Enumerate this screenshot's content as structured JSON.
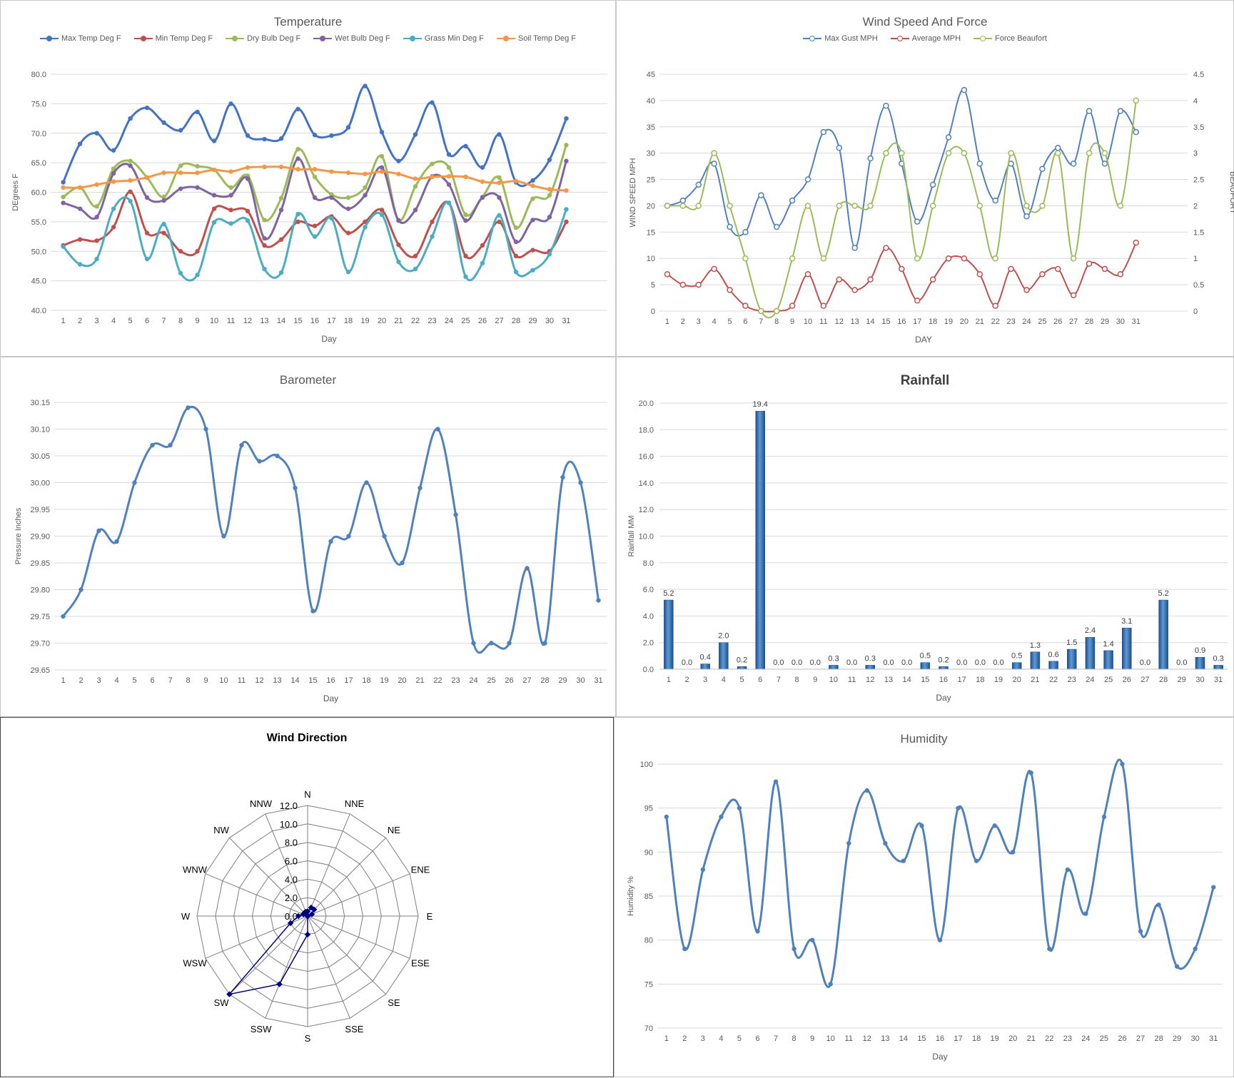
{
  "days": [
    "1",
    "2",
    "3",
    "4",
    "5",
    "6",
    "7",
    "8",
    "9",
    "10",
    "11",
    "12",
    "13",
    "14",
    "15",
    "16",
    "17",
    "18",
    "19",
    "20",
    "21",
    "22",
    "23",
    "24",
    "25",
    "26",
    "27",
    "28",
    "29",
    "30",
    "31"
  ],
  "chart_data": [
    {
      "id": "temperature",
      "type": "line",
      "title": "Temperature",
      "xlabel": "Day",
      "ylabel": "DEgrees F",
      "ylim": [
        40.0,
        80.0
      ],
      "yticks": [
        "40.0",
        "45.0",
        "50.0",
        "55.0",
        "60.0",
        "65.0",
        "70.0",
        "75.0",
        "80.0"
      ],
      "grid": true,
      "legend": "top",
      "series": [
        {
          "name": "Max Temp Deg F",
          "color": "#4472C4",
          "values": [
            61.7,
            68.2,
            70.0,
            67.1,
            72.5,
            74.3,
            71.8,
            70.5,
            73.6,
            68.7,
            75.0,
            69.6,
            69.0,
            69.1,
            74.1,
            69.7,
            69.6,
            71.0,
            78.0,
            70.2,
            65.3,
            69.8,
            75.2,
            66.4,
            67.8,
            64.2,
            69.8,
            61.7,
            62.0,
            65.5,
            72.5
          ]
        },
        {
          "name": "Min Temp Deg F",
          "color": "#C0504D",
          "values": [
            51.0,
            52.0,
            51.8,
            54.1,
            60.1,
            53.1,
            53.1,
            50.0,
            50.0,
            57.2,
            57.0,
            56.8,
            51.0,
            52.0,
            55.0,
            54.3,
            55.9,
            53.1,
            55.0,
            57.0,
            51.1,
            49.2,
            55.0,
            58.2,
            49.2,
            51.0,
            55.0,
            49.2,
            50.2,
            50.0,
            55.0
          ]
        },
        {
          "name": "Dry Bulb Deg F",
          "color": "#9BBB59",
          "values": [
            59.2,
            60.8,
            57.6,
            64.0,
            65.3,
            62.5,
            59.2,
            64.5,
            64.4,
            63.8,
            60.8,
            62.8,
            55.3,
            59.0,
            67.3,
            62.6,
            59.6,
            59.1,
            60.8,
            66.1,
            55.3,
            61.0,
            64.8,
            64.2,
            56.2,
            59.2,
            62.5,
            54.0,
            58.9,
            59.5,
            68.0
          ]
        },
        {
          "name": "Wet Bulb Deg F",
          "color": "#8064A2",
          "values": [
            58.2,
            57.2,
            55.8,
            63.2,
            64.5,
            59.1,
            58.6,
            60.6,
            60.8,
            59.5,
            59.5,
            62.3,
            52.2,
            57.0,
            65.7,
            59.1,
            59.1,
            57.2,
            59.5,
            64.2,
            55.2,
            57.0,
            62.7,
            61.3,
            55.2,
            59.1,
            59.1,
            51.6,
            55.3,
            55.8,
            65.3
          ]
        },
        {
          "name": "Grass Min Deg F",
          "color": "#4BACC6",
          "values": [
            50.8,
            47.8,
            48.7,
            57.2,
            58.5,
            48.7,
            54.6,
            46.3,
            46.0,
            54.9,
            54.7,
            55.2,
            47.0,
            46.4,
            56.3,
            52.5,
            55.6,
            46.5,
            54.1,
            56.2,
            48.2,
            47.0,
            52.5,
            58.2,
            45.7,
            48.0,
            56.1,
            46.5,
            46.8,
            49.5,
            57.1
          ]
        },
        {
          "name": "Soil Temp Deg F",
          "color": "#F79646",
          "values": [
            60.8,
            60.8,
            61.3,
            61.8,
            62.0,
            62.5,
            63.3,
            63.3,
            63.3,
            63.8,
            63.5,
            64.2,
            64.3,
            64.3,
            63.9,
            63.9,
            63.5,
            63.3,
            63.1,
            63.5,
            63.1,
            62.3,
            62.6,
            62.7,
            62.6,
            61.8,
            61.6,
            61.9,
            61.1,
            60.5,
            60.3
          ]
        }
      ]
    },
    {
      "id": "wind",
      "type": "line",
      "title": "Wind Speed And Force",
      "xlabel": "DAY",
      "ylabel": "WIND SPEED MPH",
      "ylabel_right": "BEAUFORT",
      "ylim": [
        0,
        45
      ],
      "ylim_right": [
        0,
        4.5
      ],
      "yticks": [
        "0",
        "5",
        "10",
        "15",
        "20",
        "25",
        "30",
        "35",
        "40",
        "45"
      ],
      "yticks_right": [
        "0",
        "0.5",
        "1",
        "1.5",
        "2",
        "2.5",
        "3",
        "3.5",
        "4",
        "4.5"
      ],
      "grid": true,
      "legend": "top",
      "series": [
        {
          "name": "Max Gust MPH",
          "color": "#4F81BD",
          "axis": "left",
          "values": [
            20,
            21,
            24,
            28,
            16,
            15,
            22,
            16,
            21,
            25,
            34,
            31,
            12,
            29,
            39,
            28,
            17,
            24,
            33,
            42,
            28,
            21,
            28,
            18,
            27,
            31,
            28,
            38,
            28,
            38,
            34
          ]
        },
        {
          "name": "Average MPH",
          "color": "#C0504D",
          "axis": "left",
          "values": [
            7,
            5,
            5,
            8,
            4,
            1,
            0,
            0,
            1,
            7,
            1,
            6,
            4,
            6,
            12,
            8,
            2,
            6,
            10,
            10,
            7,
            1,
            8,
            4,
            7,
            8,
            3,
            9,
            8,
            7,
            13
          ]
        },
        {
          "name": "Force Beaufort",
          "color": "#9BBB59",
          "axis": "right",
          "values": [
            2,
            2,
            2,
            3,
            2,
            1,
            0,
            0,
            1,
            2,
            1,
            2,
            2,
            2,
            3,
            3,
            1,
            2,
            3,
            3,
            2,
            1,
            3,
            2,
            2,
            3,
            1,
            3,
            3,
            2,
            4
          ]
        }
      ]
    },
    {
      "id": "barometer",
      "type": "line",
      "title": "Barometer",
      "xlabel": "Day",
      "ylabel": "Pressure Inches",
      "ylim": [
        29.65,
        30.15
      ],
      "yticks": [
        "29.65",
        "29.70",
        "29.75",
        "29.80",
        "29.85",
        "29.90",
        "29.95",
        "30.00",
        "30.05",
        "30.10",
        "30.15"
      ],
      "grid": true,
      "series": [
        {
          "color": "#4F81BD",
          "values": [
            29.75,
            29.8,
            29.91,
            29.89,
            30.0,
            30.07,
            30.07,
            30.14,
            30.1,
            29.9,
            30.07,
            30.04,
            30.05,
            29.99,
            29.76,
            29.89,
            29.9,
            30.0,
            29.9,
            29.85,
            29.99,
            30.1,
            29.94,
            29.7,
            29.7,
            29.7,
            29.84,
            29.7,
            30.01,
            30.0,
            29.78
          ]
        }
      ]
    },
    {
      "id": "rainfall",
      "type": "bar",
      "title": "Rainfall",
      "xlabel": "Day",
      "ylabel": "Rainfall MM",
      "ylim": [
        0,
        20
      ],
      "yticks": [
        "0.0",
        "2.0",
        "4.0",
        "6.0",
        "8.0",
        "10.0",
        "12.0",
        "14.0",
        "16.0",
        "18.0",
        "20.0"
      ],
      "grid": true,
      "values": [
        5.2,
        0.0,
        0.4,
        2.0,
        0.2,
        19.4,
        0.0,
        0.0,
        0.0,
        0.3,
        0.0,
        0.3,
        0.0,
        0.0,
        0.5,
        0.2,
        0.0,
        0.0,
        0.0,
        0.5,
        1.3,
        0.6,
        1.5,
        2.4,
        1.4,
        3.1,
        0.0,
        5.2,
        0.0,
        0.9,
        0.3
      ],
      "labels": [
        "5.2",
        "0.0",
        "0.4",
        "2.0",
        "0.2",
        "19.4",
        "0.0",
        "0.0",
        "0.0",
        "0.3",
        "0.0",
        "0.3",
        "0.0",
        "0.0",
        "0.5",
        "0.2",
        "0.0",
        "0.0",
        "0.0",
        "0.5",
        "1.3",
        "0.6",
        "1.5",
        "2.4",
        "1.4",
        "3.1",
        "0.0",
        "5.2",
        "0.0",
        "0.9",
        "0.3"
      ]
    },
    {
      "id": "wind_direction",
      "type": "radar",
      "title": "Wind Direction",
      "directions": [
        "N",
        "NNE",
        "NE",
        "ENE",
        "E",
        "ESE",
        "SE",
        "SSE",
        "S",
        "SSW",
        "SW",
        "WSW",
        "W",
        "WNW",
        "NW",
        "NNW"
      ],
      "rlim": [
        0,
        12.0
      ],
      "rticks": [
        "0.0",
        "2.0",
        "4.0",
        "6.0",
        "8.0",
        "10.0",
        "12.0"
      ],
      "color": "#000080",
      "values": [
        0.5,
        1.0,
        1.0,
        0.5,
        0,
        0,
        0,
        0,
        2.0,
        8.0,
        12.0,
        2.0,
        1.0,
        0.5,
        0.5,
        0.5
      ]
    },
    {
      "id": "humidity",
      "type": "line",
      "title": "Humidity",
      "xlabel": "Day",
      "ylabel": "Humidity %",
      "ylim": [
        70,
        100
      ],
      "yticks": [
        "70",
        "75",
        "80",
        "85",
        "90",
        "95",
        "100"
      ],
      "grid": true,
      "series": [
        {
          "color": "#4F81BD",
          "values": [
            94,
            79,
            88,
            94,
            95,
            81,
            98,
            79,
            80,
            75,
            91,
            97,
            91,
            89,
            93,
            80,
            95,
            89,
            93,
            90,
            99,
            79,
            88,
            83,
            94,
            100,
            81,
            84,
            77,
            79,
            86
          ]
        }
      ]
    }
  ]
}
